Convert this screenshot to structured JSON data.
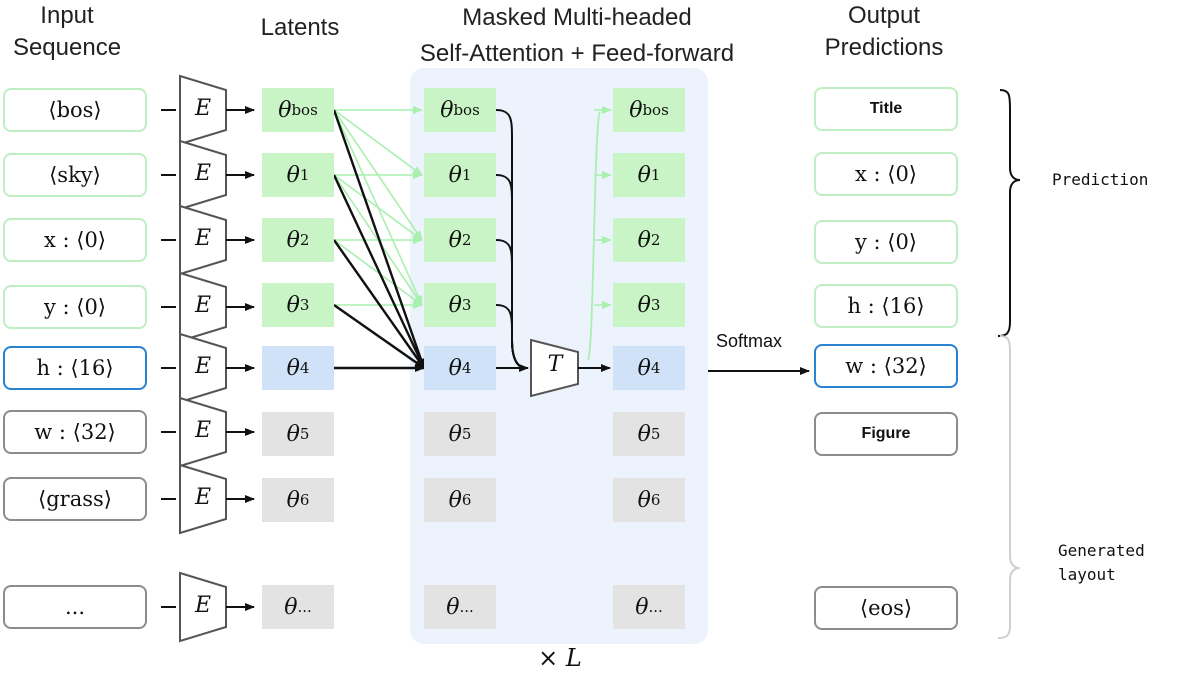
{
  "headers": {
    "input": "Input Sequence",
    "latents": "Latents",
    "attention_line1": "Masked Multi-headed",
    "attention_line2": "Self-Attention + Feed-forward",
    "output": "Output Predictions"
  },
  "inputs": [
    "⟨bos⟩",
    "⟨sky⟩",
    "x : ⟨0⟩",
    "y : ⟨0⟩",
    "h : ⟨16⟩",
    "w : ⟨32⟩",
    "⟨grass⟩",
    "..."
  ],
  "encoder_label": "E",
  "latents": [
    {
      "base": "θ",
      "sub": "bos"
    },
    {
      "base": "θ",
      "sub": "1"
    },
    {
      "base": "θ",
      "sub": "2"
    },
    {
      "base": "θ",
      "sub": "3"
    },
    {
      "base": "θ",
      "sub": "4"
    },
    {
      "base": "θ",
      "sub": "5"
    },
    {
      "base": "θ",
      "sub": "6"
    },
    {
      "base": "θ",
      "sub": "..."
    }
  ],
  "transformer_label": "T",
  "repeat_label": "× L",
  "softmax_label": "Softmax",
  "outputs": [
    "Title",
    "x : ⟨0⟩",
    "y : ⟨0⟩",
    "h : ⟨16⟩",
    "w : ⟨32⟩",
    "Figure",
    "⟨eos⟩"
  ],
  "side_labels": {
    "prediction": "Prediction",
    "generated_line1": "Generated",
    "generated_line2": "layout"
  },
  "colors": {
    "green": "#c9f5c6",
    "green_border": "#bfeec0",
    "blue": "#cfe2f7",
    "blue_border": "#2a82d3",
    "gray": "#e3e3e3",
    "gray_border": "#8c8c8c",
    "attention_panel": "#edf3fc"
  }
}
